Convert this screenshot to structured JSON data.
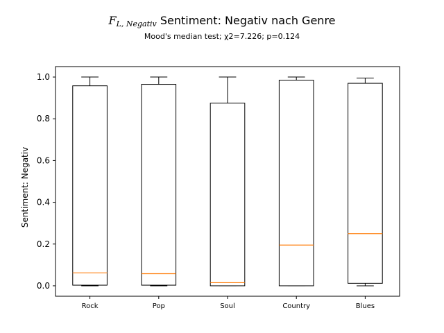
{
  "chart_data": {
    "type": "box",
    "title_math_main": "F",
    "title_math_sub": "L, Negativ",
    "title_text": "Sentiment: Negativ nach Genre",
    "subtitle": "Mood's median test; χ2=7.226; p=0.124",
    "xlabel": "",
    "ylabel": "Sentiment: Negativ",
    "ylim": [
      -0.05,
      1.05
    ],
    "yticks": [
      "0.0",
      "0.2",
      "0.4",
      "0.6",
      "0.8",
      "1.0"
    ],
    "yticks_values": [
      0.0,
      0.2,
      0.4,
      0.6,
      0.8,
      1.0
    ],
    "categories": [
      "Rock",
      "Pop",
      "Soul",
      "Country",
      "Blues"
    ],
    "boxes": [
      {
        "category": "Rock",
        "whisker_low": 0.0,
        "q1": 0.003,
        "median": 0.062,
        "q3": 0.958,
        "whisker_high": 1.0
      },
      {
        "category": "Pop",
        "whisker_low": 0.0,
        "q1": 0.003,
        "median": 0.058,
        "q3": 0.965,
        "whisker_high": 1.0
      },
      {
        "category": "Soul",
        "whisker_low": 0.0,
        "q1": 0.0,
        "median": 0.015,
        "q3": 0.875,
        "whisker_high": 1.0
      },
      {
        "category": "Country",
        "whisker_low": 0.0,
        "q1": 0.0,
        "median": 0.195,
        "q3": 0.985,
        "whisker_high": 1.0
      },
      {
        "category": "Blues",
        "whisker_low": 0.0,
        "q1": 0.012,
        "median": 0.25,
        "q3": 0.97,
        "whisker_high": 0.995
      }
    ],
    "median_color": "#ff7f0e",
    "box_color": "#000000",
    "grid": false,
    "legend": "none"
  }
}
